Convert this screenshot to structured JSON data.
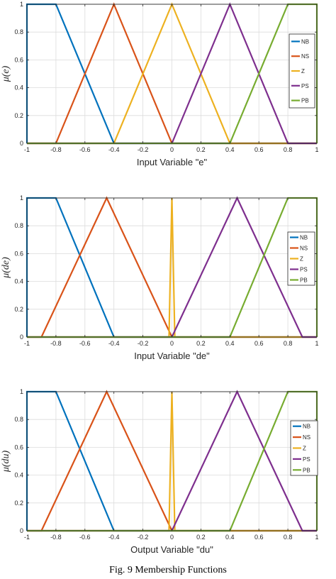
{
  "caption": "Fig. 9 Membership Functions",
  "colors": {
    "NB": "#0072BD",
    "NS": "#D95319",
    "Z": "#EDB120",
    "PS": "#7E2F8E",
    "PB": "#77AC30"
  },
  "chart_data": [
    {
      "type": "line",
      "title": "",
      "xlabel": "Input Variable \"e\"",
      "ylabel": "μ(e)",
      "xlim": [
        -1,
        1
      ],
      "ylim": [
        0,
        1
      ],
      "xticks": [
        "-1",
        "-0.8",
        "-0.6",
        "-0.4",
        "-0.2",
        "0",
        "0.2",
        "0.4",
        "0.6",
        "0.8",
        "1"
      ],
      "yticks": [
        "0",
        "0.2",
        "0.4",
        "0.6",
        "0.8",
        "1"
      ],
      "grid": true,
      "legend_position": "right",
      "series": [
        {
          "name": "NB",
          "points": [
            [
              -1,
              0
            ],
            [
              -1,
              1
            ],
            [
              -0.8,
              1
            ],
            [
              -0.4,
              0
            ],
            [
              1,
              0
            ]
          ]
        },
        {
          "name": "NS",
          "points": [
            [
              -1,
              0
            ],
            [
              -0.8,
              0
            ],
            [
              -0.4,
              1
            ],
            [
              0,
              0
            ],
            [
              1,
              0
            ]
          ]
        },
        {
          "name": "Z",
          "points": [
            [
              -1,
              0
            ],
            [
              -0.4,
              0
            ],
            [
              0,
              1
            ],
            [
              0.4,
              0
            ],
            [
              1,
              0
            ]
          ]
        },
        {
          "name": "PS",
          "points": [
            [
              -1,
              0
            ],
            [
              0,
              0
            ],
            [
              0.4,
              1
            ],
            [
              0.8,
              0
            ],
            [
              1,
              0
            ]
          ]
        },
        {
          "name": "PB",
          "points": [
            [
              -1,
              0
            ],
            [
              0.4,
              0
            ],
            [
              0.8,
              1
            ],
            [
              1,
              1
            ],
            [
              1,
              0
            ]
          ]
        }
      ]
    },
    {
      "type": "line",
      "title": "",
      "xlabel": "Input Variable \"de\"",
      "ylabel": "μ(de)",
      "xlim": [
        -1,
        1
      ],
      "ylim": [
        0,
        1
      ],
      "xticks": [
        "-1",
        "-0.8",
        "-0.6",
        "-0.4",
        "-0.2",
        "0",
        "0.2",
        "0.4",
        "0.6",
        "0.8",
        "1"
      ],
      "yticks": [
        "0",
        "0.2",
        "0.4",
        "0.6",
        "0.8",
        "1"
      ],
      "grid": true,
      "legend_position": "right",
      "series": [
        {
          "name": "NB",
          "points": [
            [
              -1,
              0
            ],
            [
              -1,
              1
            ],
            [
              -0.8,
              1
            ],
            [
              -0.4,
              0
            ],
            [
              1,
              0
            ]
          ]
        },
        {
          "name": "NS",
          "points": [
            [
              -1,
              0
            ],
            [
              -0.9,
              0
            ],
            [
              -0.45,
              1
            ],
            [
              0,
              0
            ],
            [
              1,
              0
            ]
          ]
        },
        {
          "name": "Z",
          "points": [
            [
              -1,
              0
            ],
            [
              -0.02,
              0
            ],
            [
              0,
              1
            ],
            [
              0.02,
              0
            ],
            [
              1,
              0
            ]
          ]
        },
        {
          "name": "PS",
          "points": [
            [
              -1,
              0
            ],
            [
              0,
              0
            ],
            [
              0.45,
              1
            ],
            [
              0.9,
              0
            ],
            [
              1,
              0
            ]
          ]
        },
        {
          "name": "PB",
          "points": [
            [
              -1,
              0
            ],
            [
              0.4,
              0
            ],
            [
              0.8,
              1
            ],
            [
              1,
              1
            ],
            [
              1,
              0
            ]
          ]
        }
      ]
    },
    {
      "type": "line",
      "title": "",
      "xlabel": "Output Variable \"du\"",
      "ylabel": "μ(du)",
      "xlim": [
        -1,
        1
      ],
      "ylim": [
        0,
        1
      ],
      "xticks": [
        "-1",
        "-0.8",
        "-0.6",
        "-0.4",
        "-0.2",
        "0",
        "0.2",
        "0.4",
        "0.6",
        "0.8",
        "1"
      ],
      "yticks": [
        "0",
        "0.2",
        "0.4",
        "0.6",
        "0.8",
        "1"
      ],
      "grid": true,
      "legend_position": "right",
      "series": [
        {
          "name": "NB",
          "points": [
            [
              -1,
              0
            ],
            [
              -1,
              1
            ],
            [
              -0.8,
              1
            ],
            [
              -0.4,
              0
            ],
            [
              1,
              0
            ]
          ]
        },
        {
          "name": "NS",
          "points": [
            [
              -1,
              0
            ],
            [
              -0.9,
              0
            ],
            [
              -0.45,
              1
            ],
            [
              0,
              0
            ],
            [
              1,
              0
            ]
          ]
        },
        {
          "name": "Z",
          "points": [
            [
              -1,
              0
            ],
            [
              -0.02,
              0
            ],
            [
              0,
              1
            ],
            [
              0.02,
              0
            ],
            [
              1,
              0
            ]
          ]
        },
        {
          "name": "PS",
          "points": [
            [
              -1,
              0
            ],
            [
              0,
              0
            ],
            [
              0.45,
              1
            ],
            [
              0.9,
              0
            ],
            [
              1,
              0
            ]
          ]
        },
        {
          "name": "PB",
          "points": [
            [
              -1,
              0
            ],
            [
              0.4,
              0
            ],
            [
              0.8,
              1
            ],
            [
              1,
              1
            ],
            [
              1,
              0
            ]
          ]
        }
      ]
    }
  ]
}
